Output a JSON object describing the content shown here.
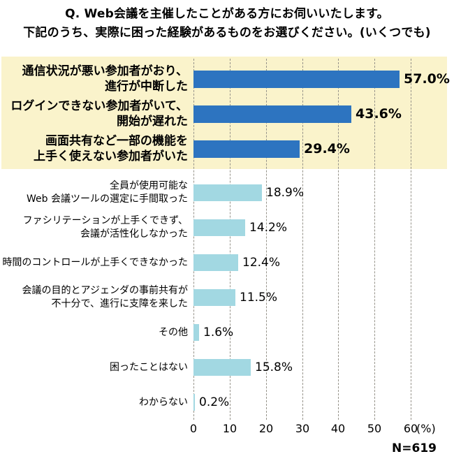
{
  "title": {
    "line1": "Q. Web会議を主催したことがある方にお伺いいたします。",
    "line2": "下記のうち、実際に困った経験があるものをお選びください。(いくつでも)"
  },
  "chart_data": {
    "type": "bar",
    "orientation": "horizontal",
    "title": "Q. Web会議を主催したことがある方にお伺いいたします。下記のうち、実際に困った経験があるものをお選びください。(いくつでも)",
    "xlabel": "(%)",
    "xlim": [
      0,
      60
    ],
    "ticks": [
      0,
      10,
      20,
      30,
      40,
      50,
      60
    ],
    "tick_unit_label": "(%)",
    "sample_label": "N=619",
    "grid": "dashed-vertical",
    "highlight_color": "#2d74c0",
    "normal_color": "#a2d8e2",
    "highlight_bg": "#faf3cb",
    "items": [
      {
        "label": [
          "通信状況が悪い参加者がおり、",
          "進行が中断した"
        ],
        "value": 57.0,
        "display": "57.0%",
        "emphasis": true
      },
      {
        "label": [
          "ログインできない参加者がいて、",
          "開始が遅れた"
        ],
        "value": 43.6,
        "display": "43.6%",
        "emphasis": true
      },
      {
        "label": [
          "画面共有など一部の機能を",
          "上手く使えない参加者がいた"
        ],
        "value": 29.4,
        "display": "29.4%",
        "emphasis": true
      },
      {
        "label": [
          "全員が使用可能な",
          "Web 会議ツールの選定に手間取った"
        ],
        "value": 18.9,
        "display": "18.9%",
        "emphasis": false
      },
      {
        "label": [
          "ファシリテーションが上手くできず、",
          "会議が活性化しなかった"
        ],
        "value": 14.2,
        "display": "14.2%",
        "emphasis": false
      },
      {
        "label": [
          "時間のコントロールが上手くできなかった"
        ],
        "value": 12.4,
        "display": "12.4%",
        "emphasis": false
      },
      {
        "label": [
          "会議の目的とアジェンダの事前共有が",
          "不十分で、進行に支障を来した"
        ],
        "value": 11.5,
        "display": "11.5%",
        "emphasis": false
      },
      {
        "label": [
          "その他"
        ],
        "value": 1.6,
        "display": "1.6%",
        "emphasis": false
      },
      {
        "label": [
          "困ったことはない"
        ],
        "value": 15.8,
        "display": "15.8%",
        "emphasis": false
      },
      {
        "label": [
          "わからない"
        ],
        "value": 0.2,
        "display": "0.2%",
        "emphasis": false
      }
    ]
  }
}
